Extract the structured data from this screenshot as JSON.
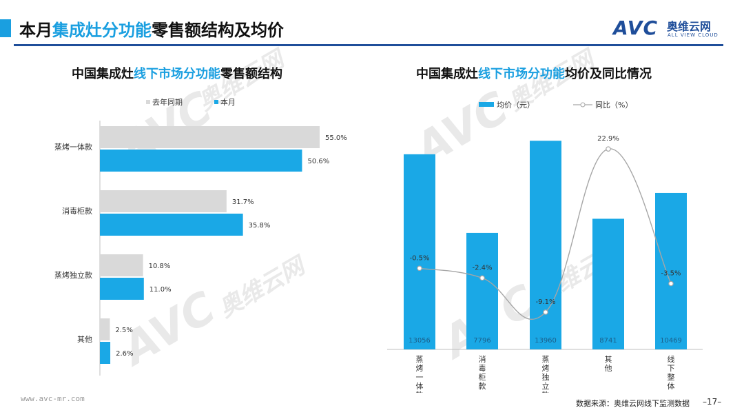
{
  "header": {
    "title_pre": "本月",
    "title_hl": "集成灶分功能",
    "title_post": "零售额结构及均价",
    "logo_brand": "AVC",
    "logo_cn": "奥维云网",
    "logo_en": "ALL VIEW CLOUD"
  },
  "watermark": {
    "brand": "AVC",
    "cn": "奥维云网",
    "en": "ALL VIEW CLOUD"
  },
  "left_panel": {
    "title_pre": "中国集成灶",
    "title_hl": "线下市场分功能",
    "title_post": "零售额结构"
  },
  "right_panel": {
    "title_pre": "中国集成灶",
    "title_hl": "线下市场分功能",
    "title_post": "均价及同比情况"
  },
  "colors": {
    "blue": "#1aa8e6",
    "gray": "#d9d9d9",
    "line": "#a6a6a6",
    "accent": "#1a9fe0",
    "navy": "#1f4e9a"
  },
  "chart_data": [
    {
      "type": "bar",
      "orientation": "horizontal",
      "categories": [
        "蒸烤一体款",
        "消毒柜款",
        "蒸烤独立款",
        "其他"
      ],
      "series": [
        {
          "name": "去年同期",
          "values": [
            55.0,
            31.7,
            10.8,
            2.5
          ],
          "labels": [
            "55.0%",
            "31.7%",
            "10.8%",
            "2.5%"
          ]
        },
        {
          "name": "本月",
          "values": [
            50.6,
            35.8,
            11.0,
            2.6
          ],
          "labels": [
            "50.6%",
            "35.8%",
            "11.0%",
            "2.6%"
          ]
        }
      ],
      "xlim": [
        0,
        60
      ],
      "legend": "top",
      "grid": false
    },
    {
      "type": "bar+line",
      "categories": [
        "蒸烤一体款",
        "消毒柜款",
        "蒸烤独立款",
        "其他",
        "线下整体"
      ],
      "series": [
        {
          "name": "均价（元）",
          "type": "bar",
          "values": [
            13056,
            7796,
            13960,
            8741,
            10469
          ],
          "labels": [
            "13056",
            "7796",
            "13960",
            "8741",
            "10469"
          ]
        },
        {
          "name": "同比（%）",
          "type": "line",
          "values": [
            -0.5,
            -2.4,
            -9.1,
            22.9,
            -3.5
          ],
          "labels": [
            "-0.5%",
            "-2.4%",
            "-9.1%",
            "22.9%",
            "-3.5%"
          ]
        }
      ],
      "ylim_bar": [
        0,
        16000
      ],
      "ylim_line": [
        -11,
        24
      ],
      "legend": "top",
      "grid": false
    }
  ],
  "footer": {
    "url": "www.avc-mr.com",
    "source": "数据来源：奥维云网线下监测数据",
    "page": "–17–"
  }
}
